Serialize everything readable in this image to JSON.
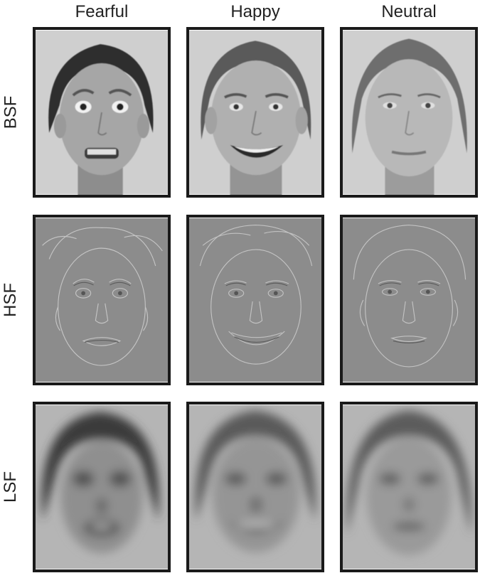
{
  "columns": [
    {
      "label": "Fearful",
      "expression": "fearful"
    },
    {
      "label": "Happy",
      "expression": "happy"
    },
    {
      "label": "Neutral",
      "expression": "neutral"
    }
  ],
  "rows": [
    {
      "label": "BSF",
      "filter": "broad"
    },
    {
      "label": "HSF",
      "filter": "high"
    },
    {
      "label": "LSF",
      "filter": "low"
    }
  ],
  "icons": {
    "face": "face-photo-icon"
  },
  "colors": {
    "border": "#1a1a1a",
    "bsf_bg": "#cfcfcf",
    "hsf_bg": "#8c8c8c",
    "lsf_bg": "#b5b5b5"
  }
}
